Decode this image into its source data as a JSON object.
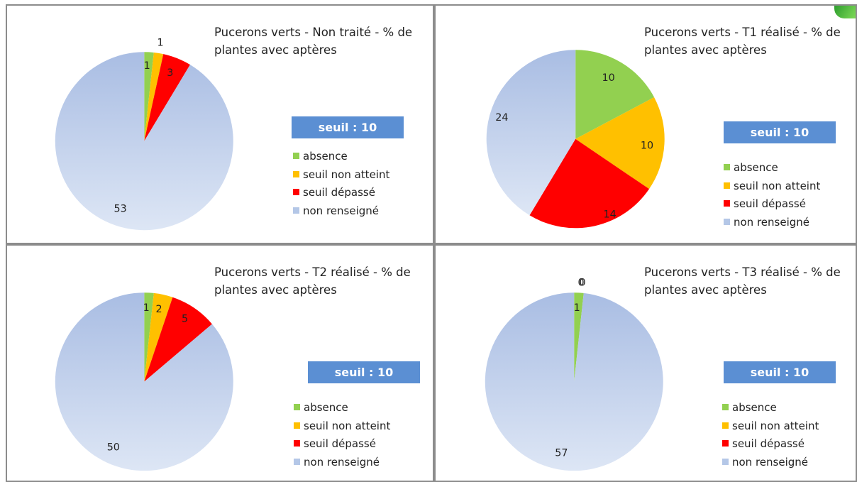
{
  "colors": {
    "absence": "#92d050",
    "seuil_non_atteint": "#ffc000",
    "seuil_depasse": "#ff0000",
    "non_renseigne": "#b4c7e7",
    "seuil_box": "#5b8fd3"
  },
  "legend_items": [
    "absence",
    "seuil non atteint",
    "seuil dépassé",
    "non renseigné"
  ],
  "seuil_label": "seuil : 10",
  "chart_data": [
    {
      "type": "pie",
      "title": "Pucerons verts - Non traité - % de plantes avec aptères",
      "categories": [
        "absence",
        "seuil non atteint",
        "seuil dépassé",
        "non renseigné"
      ],
      "values": [
        1,
        1,
        3,
        53
      ],
      "data_labels": [
        "1",
        "1",
        "3",
        "53"
      ],
      "legend": "right"
    },
    {
      "type": "pie",
      "title": "Pucerons verts - T1 réalisé - % de plantes avec aptères",
      "categories": [
        "absence",
        "seuil non atteint",
        "seuil dépassé",
        "non renseigné"
      ],
      "values": [
        10,
        10,
        14,
        24
      ],
      "data_labels": [
        "10",
        "10",
        "14",
        "24"
      ],
      "legend": "right"
    },
    {
      "type": "pie",
      "title": "Pucerons verts - T2 réalisé - % de plantes avec aptères",
      "categories": [
        "absence",
        "seuil non atteint",
        "seuil dépassé",
        "non renseigné"
      ],
      "values": [
        1,
        2,
        5,
        50
      ],
      "data_labels": [
        "1",
        "2",
        "5",
        "50"
      ],
      "legend": "right"
    },
    {
      "type": "pie",
      "title": "Pucerons verts - T3 réalisé - % de plantes avec aptères",
      "categories": [
        "absence",
        "seuil non atteint",
        "seuil dépassé",
        "non renseigné"
      ],
      "values": [
        1,
        0,
        0,
        57
      ],
      "data_labels": [
        "1",
        "0",
        "0",
        "57"
      ],
      "legend": "right"
    }
  ]
}
